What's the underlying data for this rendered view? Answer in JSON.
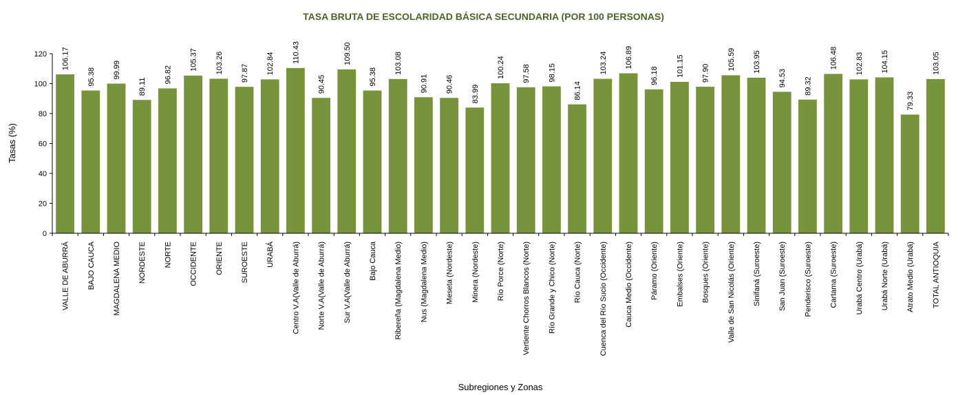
{
  "chart_data": {
    "type": "bar",
    "title": "TASA BRUTA DE ESCOLARIDAD BÁSICA SECUNDARIA (POR 100 PERSONAS)",
    "xlabel": "Subregiones y Zonas",
    "ylabel": "Tasas (%)",
    "ylim": [
      0,
      120
    ],
    "yticks": [
      0,
      20,
      40,
      60,
      80,
      100,
      120
    ],
    "grid": false,
    "categories": [
      "VALLE DE ABURRÁ",
      "BAJO CAUCA",
      "MAGDALENA MEDIO",
      "NORDESTE",
      "NORTE",
      "OCCIDENTE",
      "ORIENTE",
      "SUROESTE",
      "URABÁ",
      "Centro V.A(Valle de Aburrá)",
      "Norte V.A(Valle de Aburrá)",
      "Sur V.A(Valle de Aburrá)",
      "Bajo Cauca",
      "Ribereña  (Magdalena Medio)",
      "Nus  (Magdalena Medio)",
      "Meseta  (Nordeste)",
      "Minera  (Nordeste)",
      "Río Porce   (Norte)",
      "Vertiente Chorros Blancos  (Norte)",
      "Río Grande y Chico  (Norte)",
      "Río Cauca  (Norte)",
      "Cuenca del Río Sucio  (Occidente)",
      "Cauca Medio  (Occidente)",
      "Páramo   (Oriente)",
      "Embalses  (Oriente)",
      "Bosques  (Oriente)",
      "Valle de San Nicolás  (Oriente)",
      "Sinifaná  (Suroeste)",
      "San Juan  (Suroeste)",
      "Penderisco  (Suroeste)",
      "Cartama  (Suroeste)",
      "Urabá Centro  (Urabá)",
      "Urabá Norte  (Urabá)",
      "Atrato Medio  (Urabá)",
      "TOTAL ANTIOQUIA"
    ],
    "values": [
      106.17,
      95.38,
      99.99,
      89.11,
      96.82,
      105.37,
      103.26,
      97.87,
      102.84,
      110.43,
      90.45,
      109.5,
      95.38,
      103.08,
      90.91,
      90.46,
      83.99,
      100.24,
      97.58,
      98.15,
      86.14,
      103.24,
      106.89,
      96.18,
      101.15,
      97.9,
      105.59,
      103.95,
      94.53,
      89.32,
      106.48,
      102.83,
      104.15,
      79.33,
      103.05
    ],
    "value_labels": [
      "106.17",
      "95.38",
      "99.99",
      "89.11",
      "96.82",
      "105.37",
      "103.26",
      "97.87",
      "102.84",
      "110.43",
      "90.45",
      "109.50",
      "95.38",
      "103.08",
      "90.91",
      "90.46",
      "83.99",
      "100.24",
      "97.58",
      "98.15",
      "86.14",
      "103.24",
      "106.89",
      "96.18",
      "101.15",
      "97.90",
      "105.59",
      "103.95",
      "94.53",
      "89.32",
      "106.48",
      "102.83",
      "104.15",
      "79.33",
      "103.05"
    ],
    "colors": {
      "bar": "#77933c",
      "title": "#4f6228",
      "axis": "#000000"
    }
  }
}
